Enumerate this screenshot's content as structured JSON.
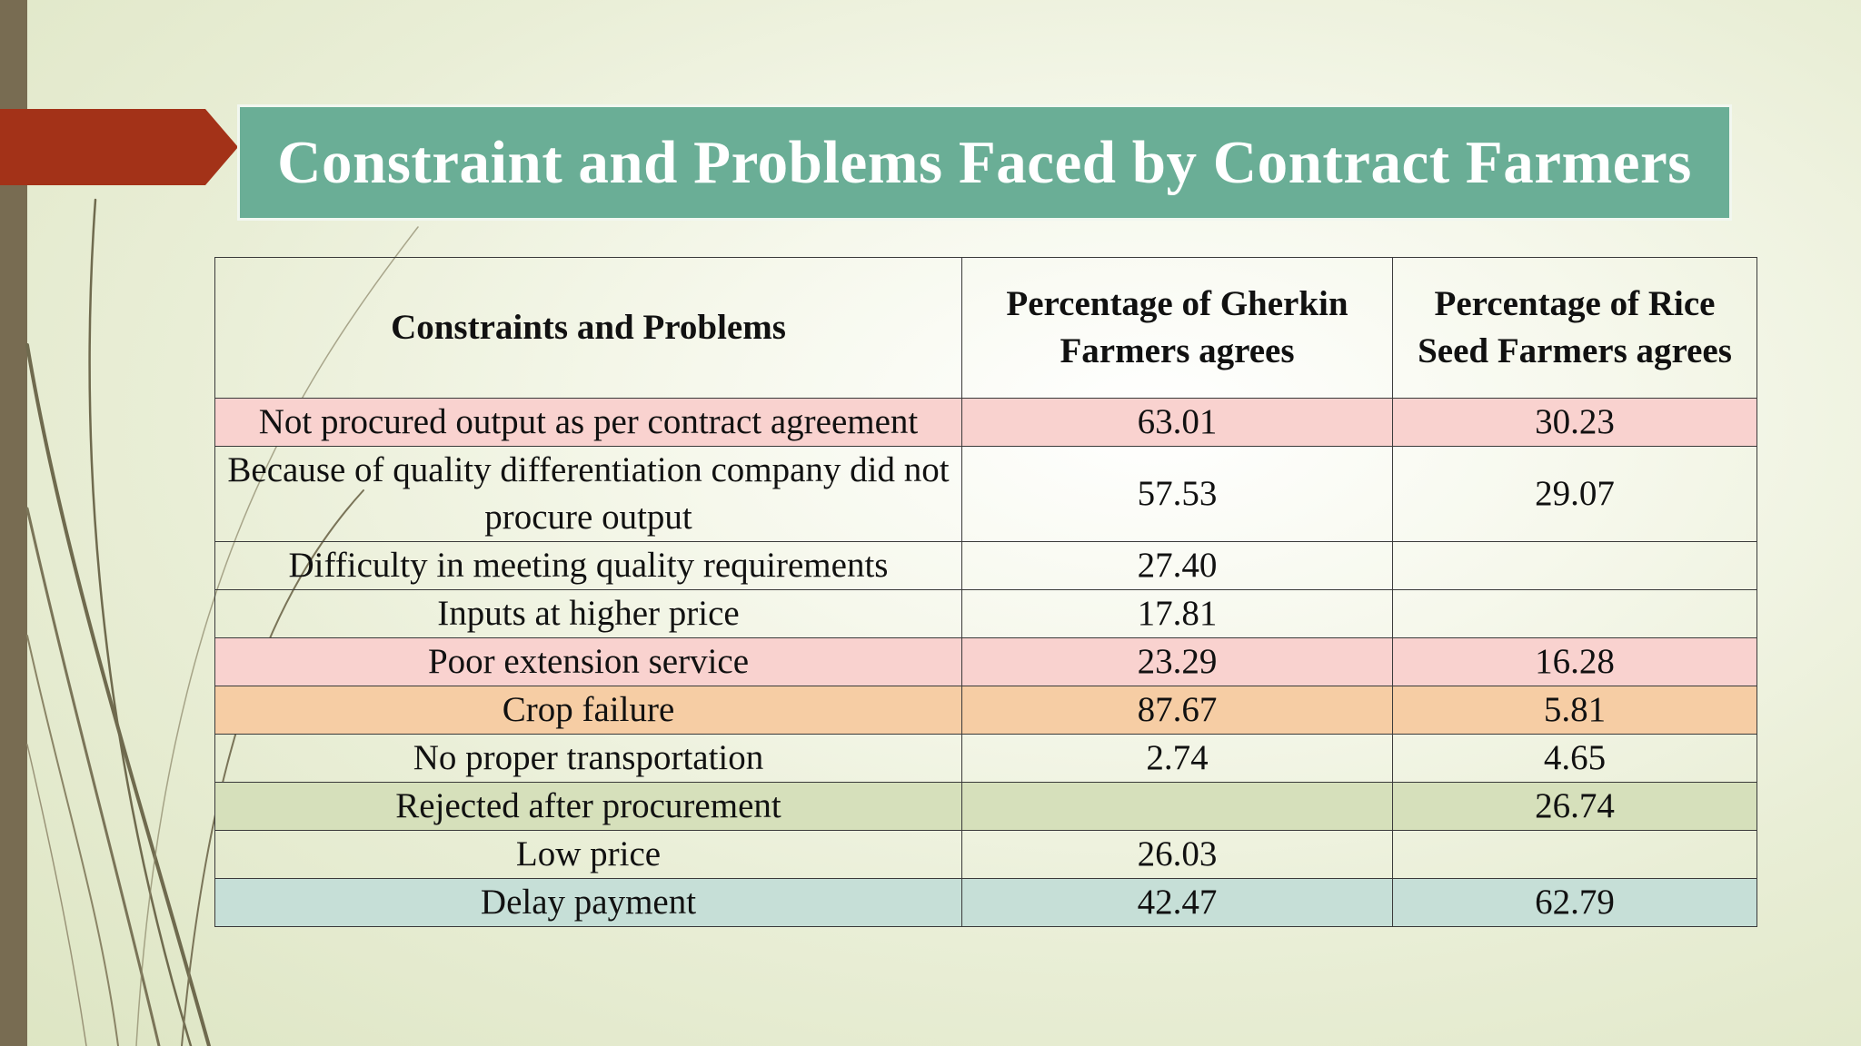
{
  "slide": {
    "title": "Constraint and Problems Faced by Contract Farmers"
  },
  "table": {
    "headers": [
      "Constraints and Problems",
      "Percentage of Gherkin Farmers agrees",
      "Percentage of Rice Seed Farmers agrees"
    ],
    "rows": [
      {
        "problem": "Not procured output as per contract agreement",
        "gherkin": "63.01",
        "rice": "30.23",
        "highlight": "#f9d2cf"
      },
      {
        "problem": "Because of quality differentiation company did not procure output",
        "gherkin": "57.53",
        "rice": "29.07",
        "highlight": "none"
      },
      {
        "problem": "Difficulty in meeting quality requirements",
        "gherkin": "27.40",
        "rice": "",
        "highlight": "none"
      },
      {
        "problem": "Inputs at higher price",
        "gherkin": "17.81",
        "rice": "",
        "highlight": "none"
      },
      {
        "problem": "Poor extension service",
        "gherkin": "23.29",
        "rice": "16.28",
        "highlight": "#f9d2cf"
      },
      {
        "problem": "Crop failure",
        "gherkin": "87.67",
        "rice": "5.81",
        "highlight": "#f6cda4"
      },
      {
        "problem": "No proper transportation",
        "gherkin": "2.74",
        "rice": "4.65",
        "highlight": "none"
      },
      {
        "problem": "Rejected after procurement",
        "gherkin": "",
        "rice": "26.74",
        "highlight": "#d6e0bb"
      },
      {
        "problem": "Low price",
        "gherkin": "26.03",
        "rice": "",
        "highlight": "none"
      },
      {
        "problem": "Delay payment",
        "gherkin": "42.47",
        "rice": "62.79",
        "highlight": "#c6dfd7"
      }
    ]
  },
  "colors": {
    "title_bar": "#6aae96",
    "arrow": "#a33218",
    "left_bar": "#786c52"
  }
}
